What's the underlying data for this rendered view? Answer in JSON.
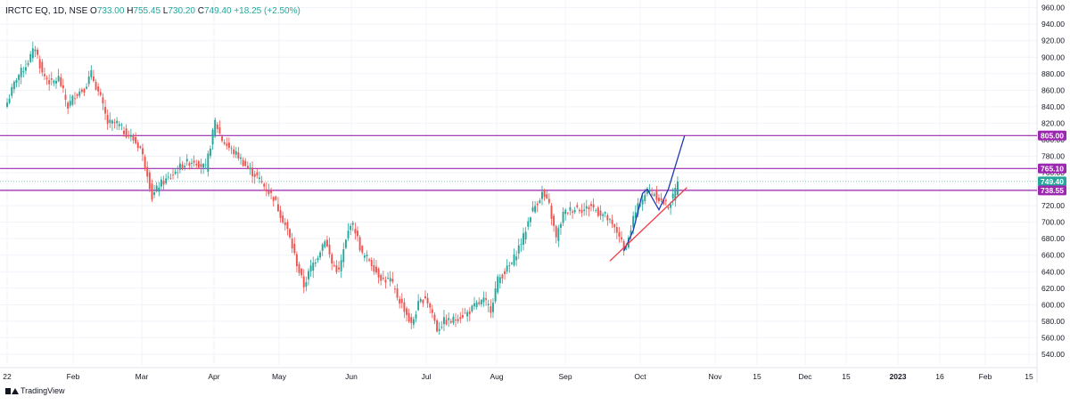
{
  "header": {
    "symbol": "IRCTC EQ, 1D, NSE",
    "open_label": "O",
    "open": "733.00",
    "high_label": "H",
    "high": "755.45",
    "low_label": "L",
    "low": "730.20",
    "close_label": "C",
    "close": "749.40",
    "change": "+18.25 (+2.50%)"
  },
  "branding": {
    "label": "TradingView"
  },
  "colors": {
    "up": "#26a69a",
    "down": "#ef5350",
    "hline": "#9c27b0",
    "uptrend": "#1e3bb3",
    "support": "#f23645",
    "grid": "#f0f3fa",
    "axis_text": "#131722"
  },
  "chart_data": {
    "type": "candlestick",
    "ylim": [
      527,
      965
    ],
    "y_ticks": [
      "540.00",
      "560.00",
      "580.00",
      "600.00",
      "620.00",
      "640.00",
      "660.00",
      "680.00",
      "700.00",
      "720.00",
      "740.00",
      "760.00",
      "780.00",
      "800.00",
      "820.00",
      "840.00",
      "860.00",
      "880.00",
      "900.00",
      "920.00",
      "940.00",
      "960.00"
    ],
    "x_ticks": [
      "22",
      "Feb",
      "Mar",
      "Apr",
      "May",
      "Jun",
      "Jul",
      "Aug",
      "Sep",
      "Oct",
      "Nov",
      "15",
      "Dec",
      "15",
      "2023",
      "16",
      "Feb",
      "15"
    ],
    "price_labels": [
      {
        "value": 805.0,
        "text": "805.00",
        "color": "#9c27b0"
      },
      {
        "value": 765.1,
        "text": "765.10",
        "color": "#9c27b0"
      },
      {
        "value": 749.4,
        "text": "749.40",
        "color": "#26a69a"
      },
      {
        "value": 738.55,
        "text": "738.55",
        "color": "#9c27b0"
      }
    ],
    "horizontal_lines": [
      805.0,
      765.1,
      738.55
    ],
    "last_price": 749.4,
    "close_path": [
      [
        0,
        845
      ],
      [
        4,
        875
      ],
      [
        8,
        890
      ],
      [
        12,
        912
      ],
      [
        15,
        880
      ],
      [
        19,
        868
      ],
      [
        22,
        875
      ],
      [
        26,
        840
      ],
      [
        29,
        855
      ],
      [
        33,
        862
      ],
      [
        36,
        880
      ],
      [
        40,
        850
      ],
      [
        43,
        820
      ],
      [
        47,
        820
      ],
      [
        50,
        810
      ],
      [
        54,
        800
      ],
      [
        57,
        790
      ],
      [
        60,
        760
      ],
      [
        62,
        730
      ],
      [
        65,
        745
      ],
      [
        70,
        755
      ],
      [
        75,
        770
      ],
      [
        80,
        775
      ],
      [
        85,
        765
      ],
      [
        89,
        822
      ],
      [
        92,
        800
      ],
      [
        95,
        790
      ],
      [
        99,
        780
      ],
      [
        103,
        765
      ],
      [
        107,
        755
      ],
      [
        111,
        740
      ],
      [
        114,
        730
      ],
      [
        117,
        710
      ],
      [
        120,
        690
      ],
      [
        123,
        660
      ],
      [
        125,
        640
      ],
      [
        127,
        623
      ],
      [
        130,
        645
      ],
      [
        133,
        660
      ],
      [
        136,
        680
      ],
      [
        139,
        650
      ],
      [
        142,
        640
      ],
      [
        144,
        665
      ],
      [
        147,
        700
      ],
      [
        149,
        690
      ],
      [
        152,
        660
      ],
      [
        155,
        655
      ],
      [
        158,
        640
      ],
      [
        161,
        630
      ],
      [
        164,
        630
      ],
      [
        167,
        610
      ],
      [
        170,
        595
      ],
      [
        173,
        575
      ],
      [
        176,
        600
      ],
      [
        179,
        610
      ],
      [
        182,
        590
      ],
      [
        184,
        570
      ],
      [
        187,
        580
      ],
      [
        190,
        580
      ],
      [
        193,
        585
      ],
      [
        197,
        590
      ],
      [
        201,
        600
      ],
      [
        204,
        605
      ],
      [
        207,
        595
      ],
      [
        210,
        630
      ],
      [
        213,
        640
      ],
      [
        216,
        650
      ],
      [
        219,
        670
      ],
      [
        221,
        682
      ],
      [
        224,
        710
      ],
      [
        226,
        720
      ],
      [
        229,
        735
      ],
      [
        232,
        720
      ],
      [
        235,
        680
      ],
      [
        238,
        710
      ],
      [
        241,
        715
      ],
      [
        244,
        718
      ],
      [
        247,
        715
      ],
      [
        250,
        720
      ],
      [
        253,
        712
      ],
      [
        256,
        708
      ],
      [
        259,
        695
      ],
      [
        262,
        685
      ],
      [
        264,
        665
      ],
      [
        266,
        680
      ],
      [
        268,
        705
      ],
      [
        271,
        725
      ],
      [
        274,
        738
      ],
      [
        277,
        735
      ],
      [
        280,
        725
      ],
      [
        283,
        720
      ],
      [
        285,
        730
      ],
      [
        287,
        749.4
      ]
    ],
    "drawings": [
      {
        "type": "trendline",
        "role": "uptrend",
        "points": [
          [
            264,
            665
          ],
          [
            268,
            690
          ],
          [
            272,
            735
          ],
          [
            274,
            740
          ],
          [
            279,
            715
          ],
          [
            283,
            740
          ],
          [
            290,
            805
          ]
        ]
      },
      {
        "type": "trendline",
        "role": "support",
        "points": [
          [
            258,
            653
          ],
          [
            291,
            742
          ]
        ]
      }
    ]
  }
}
